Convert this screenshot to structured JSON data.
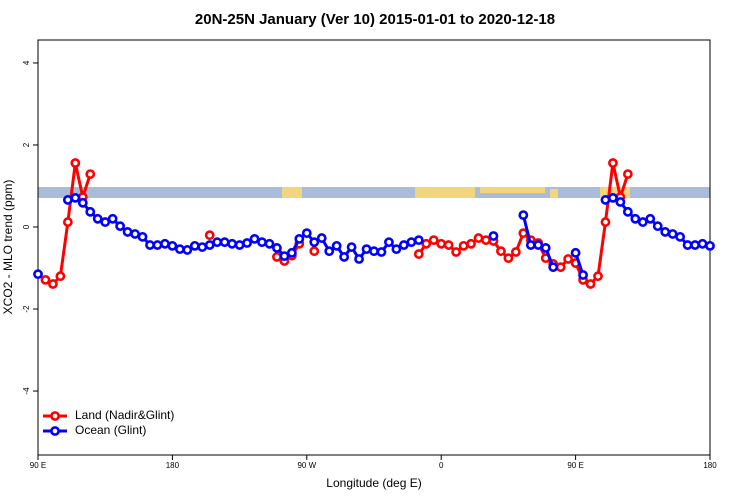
{
  "chart_data": {
    "type": "line",
    "title": "20N-25N January (Ver 10)   2015-01-01 to 2020-12-18",
    "xlabel": "Longitude (deg E)",
    "ylabel": "XCO2 - MLO trend (ppm)",
    "x": [
      90,
      95,
      100,
      105,
      110,
      115,
      120,
      125,
      130,
      135,
      140,
      145,
      150,
      155,
      160,
      165,
      170,
      175,
      180,
      185,
      190,
      195,
      200,
      205,
      210,
      215,
      220,
      225,
      230,
      235,
      240,
      245,
      250,
      255,
      260,
      265,
      270,
      275,
      280,
      285,
      290,
      295,
      300,
      305,
      310,
      315,
      320,
      325,
      330,
      335,
      340,
      345,
      350,
      355,
      360,
      365,
      370,
      375,
      380,
      385,
      390,
      395,
      400,
      405,
      410,
      415,
      420,
      425,
      430,
      435,
      440,
      445,
      450,
      455,
      460,
      465,
      470,
      475,
      480,
      485,
      490,
      495,
      500,
      505,
      510,
      515,
      520,
      525,
      530,
      535,
      540
    ],
    "series": [
      {
        "name": "Land (Nadir&Glint)",
        "color": "#ff0000",
        "values": [
          null,
          -1.29,
          -1.39,
          -1.2,
          0.12,
          1.56,
          0.73,
          1.29,
          null,
          null,
          null,
          null,
          null,
          null,
          null,
          null,
          null,
          null,
          null,
          null,
          null,
          null,
          null,
          -0.2,
          null,
          null,
          null,
          null,
          null,
          null,
          null,
          null,
          -0.73,
          -0.83,
          -0.7,
          -0.41,
          null,
          -0.59,
          null,
          null,
          null,
          null,
          null,
          null,
          null,
          null,
          null,
          null,
          null,
          null,
          null,
          -0.66,
          -0.41,
          -0.32,
          -0.41,
          -0.44,
          -0.61,
          -0.46,
          -0.41,
          -0.27,
          -0.32,
          -0.34,
          -0.59,
          -0.76,
          -0.61,
          -0.15,
          -0.32,
          -0.39,
          -0.76,
          -0.9,
          -0.98,
          -0.78,
          -0.88,
          -1.29,
          -1.39,
          -1.2,
          0.12,
          1.56,
          0.73,
          1.29,
          null,
          null,
          null,
          null,
          null,
          null,
          null,
          null,
          null,
          null,
          null
        ]
      },
      {
        "name": "Ocean (Glint)",
        "color": "#0000ff",
        "values": [
          -1.15,
          null,
          null,
          null,
          0.66,
          0.71,
          0.59,
          0.37,
          0.2,
          0.12,
          0.2,
          0.02,
          -0.12,
          -0.17,
          -0.24,
          -0.44,
          -0.44,
          -0.41,
          -0.46,
          -0.54,
          -0.56,
          -0.46,
          -0.49,
          -0.44,
          -0.37,
          -0.37,
          -0.41,
          -0.44,
          -0.39,
          -0.29,
          -0.37,
          -0.41,
          -0.51,
          -0.71,
          -0.63,
          -0.29,
          -0.15,
          -0.37,
          -0.27,
          -0.59,
          -0.46,
          -0.73,
          -0.49,
          -0.78,
          -0.54,
          -0.59,
          -0.61,
          -0.37,
          -0.54,
          -0.44,
          -0.37,
          -0.32,
          null,
          null,
          null,
          null,
          null,
          null,
          null,
          null,
          null,
          -0.22,
          null,
          null,
          null,
          0.29,
          -0.44,
          -0.44,
          -0.51,
          -0.98,
          null,
          null,
          -0.63,
          -1.17,
          null,
          null,
          0.66,
          0.71,
          0.61,
          0.37,
          0.2,
          0.12,
          0.2,
          0.02,
          -0.12,
          -0.17,
          -0.24,
          -0.44,
          -0.44,
          -0.41,
          -0.46
        ]
      }
    ],
    "xlim": [
      90,
      540
    ],
    "xticks": [
      {
        "value": 90,
        "label": "90 E"
      },
      180,
      {
        "value": 270,
        "label": "90 W"
      },
      {
        "value": 360,
        "label": "0"
      },
      {
        "value": 450,
        "label": "90 E"
      },
      {
        "value": 540,
        "label": "180"
      }
    ],
    "ylim": [
      -5.56,
      4.56
    ],
    "yticks": [
      -4,
      -2,
      0,
      2,
      4
    ],
    "legend": "bottom-left"
  }
}
